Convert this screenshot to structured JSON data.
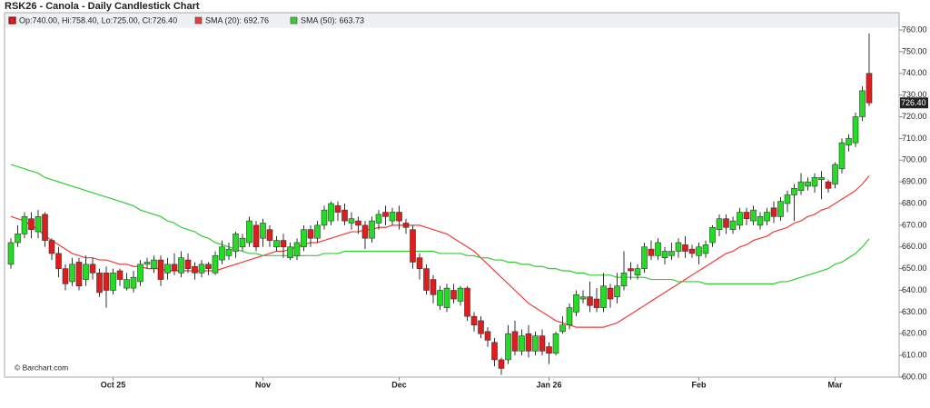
{
  "chart_data": {
    "type": "candlestick",
    "title": "RSK26 - Canola - Daily Candlestick Chart",
    "legend_ohlc": "Op:740.00, Hi:758.40, Lo:725.00, Cl:726.40",
    "credit": "© Barchart.com",
    "up_color": "#22dd22",
    "down_color": "#e01c1c",
    "last_price": {
      "value": 726.4,
      "label": "726.40"
    },
    "ylim": [
      600,
      760
    ],
    "yticks": [
      {
        "value": 600,
        "label": "600.00"
      },
      {
        "value": 610,
        "label": "610.00"
      },
      {
        "value": 620,
        "label": "620.00"
      },
      {
        "value": 630,
        "label": "630.00"
      },
      {
        "value": 640,
        "label": "640.00"
      },
      {
        "value": 650,
        "label": "650.00"
      },
      {
        "value": 660,
        "label": "660.00"
      },
      {
        "value": 670,
        "label": "670.00"
      },
      {
        "value": 680,
        "label": "680.00"
      },
      {
        "value": 690,
        "label": "690.00"
      },
      {
        "value": 700,
        "label": "700.00"
      },
      {
        "value": 710,
        "label": "710.00"
      },
      {
        "value": 720,
        "label": "720.00"
      },
      {
        "value": 730,
        "label": "730.00"
      },
      {
        "value": 740,
        "label": "740.00"
      },
      {
        "value": 750,
        "label": "750.00"
      },
      {
        "value": 760,
        "label": "760.00"
      }
    ],
    "grid": false,
    "categories": [
      null,
      null,
      null,
      null,
      null,
      null,
      null,
      null,
      null,
      null,
      null,
      null,
      null,
      null,
      null,
      "Oct 25",
      null,
      null,
      null,
      null,
      null,
      null,
      null,
      null,
      null,
      null,
      null,
      null,
      null,
      null,
      null,
      null,
      null,
      null,
      null,
      null,
      null,
      "Nov",
      null,
      null,
      null,
      null,
      null,
      null,
      null,
      null,
      null,
      null,
      null,
      null,
      null,
      null,
      null,
      null,
      null,
      null,
      null,
      "Dec",
      null,
      null,
      null,
      null,
      null,
      null,
      null,
      null,
      null,
      null,
      null,
      null,
      null,
      null,
      null,
      null,
      null,
      null,
      null,
      null,
      null,
      "Jan 26",
      null,
      null,
      null,
      null,
      null,
      null,
      null,
      null,
      null,
      null,
      null,
      null,
      null,
      null,
      null,
      null,
      null,
      null,
      null,
      null,
      null,
      "Feb",
      null,
      null,
      null,
      null,
      null,
      null,
      null,
      null,
      null,
      null,
      null,
      null,
      null,
      null,
      null,
      null,
      null,
      null,
      null,
      "Mar",
      null,
      null,
      null,
      null,
      null
    ],
    "open": [
      652,
      662,
      666,
      673,
      667,
      675,
      663,
      657,
      650,
      644,
      653,
      645,
      652,
      648,
      648,
      640,
      649,
      641,
      641,
      644,
      652,
      650,
      654,
      648,
      652,
      648,
      654,
      651,
      648,
      652,
      648,
      654,
      656,
      658,
      660,
      662,
      670,
      664,
      668,
      660,
      663,
      655,
      656,
      660,
      668,
      664,
      670,
      672,
      679,
      677,
      671,
      672,
      670,
      664,
      671,
      676,
      672,
      676,
      671,
      668,
      655,
      650,
      645,
      633,
      632,
      640,
      635,
      641,
      628,
      626,
      621,
      616,
      608,
      608,
      621,
      612,
      620,
      612,
      619,
      614,
      611,
      621,
      624,
      630,
      636,
      637,
      636,
      632,
      641,
      637,
      642,
      650,
      647,
      650,
      659,
      656,
      655,
      656,
      658,
      661,
      659,
      656,
      657,
      662,
      668,
      673,
      668,
      670,
      676,
      672,
      670,
      672,
      678,
      674,
      680,
      684,
      686,
      688,
      688,
      691,
      690,
      689,
      696,
      707,
      708,
      720,
      740
    ],
    "high": [
      664,
      670,
      676,
      676,
      677,
      676,
      664,
      660,
      652,
      655,
      655,
      656,
      655,
      650,
      651,
      650,
      650,
      648,
      649,
      654,
      655,
      656,
      656,
      655,
      657,
      658,
      657,
      653,
      654,
      653,
      658,
      663,
      662,
      667,
      666,
      674,
      672,
      673,
      670,
      665,
      666,
      662,
      664,
      670,
      670,
      672,
      679,
      681,
      681,
      680,
      676,
      674,
      672,
      674,
      677,
      679,
      678,
      679,
      673,
      670,
      657,
      652,
      647,
      642,
      643,
      643,
      642,
      642,
      630,
      628,
      623,
      618,
      609,
      624,
      626,
      622,
      624,
      621,
      622,
      616,
      621,
      628,
      634,
      640,
      640,
      644,
      641,
      648,
      643,
      648,
      658,
      653,
      652,
      662,
      663,
      664,
      660,
      662,
      664,
      665,
      661,
      662,
      663,
      670,
      675,
      675,
      674,
      678,
      678,
      679,
      676,
      678,
      681,
      683,
      686,
      689,
      694,
      692,
      694,
      695,
      691,
      699,
      710,
      712,
      722,
      734,
      758.4
    ],
    "low": [
      650,
      660,
      664,
      664,
      664,
      660,
      654,
      646,
      640,
      642,
      640,
      642,
      645,
      637,
      632,
      638,
      642,
      640,
      639,
      642,
      650,
      648,
      642,
      645,
      647,
      646,
      648,
      645,
      646,
      647,
      647,
      652,
      654,
      655,
      658,
      660,
      658,
      660,
      660,
      658,
      655,
      654,
      654,
      658,
      660,
      662,
      668,
      670,
      672,
      670,
      668,
      666,
      659,
      662,
      668,
      670,
      670,
      668,
      666,
      650,
      645,
      638,
      634,
      631,
      630,
      634,
      633,
      626,
      621,
      618,
      614,
      605,
      601,
      606,
      610,
      610,
      609,
      610,
      610,
      606,
      610,
      620,
      622,
      628,
      634,
      630,
      630,
      630,
      632,
      634,
      640,
      645,
      645,
      648,
      654,
      654,
      652,
      654,
      655,
      655,
      655,
      652,
      655,
      660,
      665,
      666,
      666,
      668,
      670,
      670,
      668,
      670,
      671,
      672,
      676,
      672,
      684,
      686,
      685,
      682,
      685,
      687,
      694,
      704,
      706,
      718,
      725
    ],
    "close": [
      662,
      666,
      674,
      668,
      674,
      663,
      657,
      650,
      643,
      652,
      642,
      652,
      648,
      639,
      640,
      648,
      645,
      645,
      646,
      652,
      653,
      654,
      645,
      652,
      649,
      655,
      650,
      648,
      652,
      650,
      656,
      660,
      659,
      666,
      664,
      672,
      660,
      671,
      663,
      663,
      660,
      660,
      662,
      668,
      664,
      670,
      677,
      680,
      676,
      672,
      673,
      670,
      664,
      672,
      675,
      674,
      676,
      672,
      669,
      653,
      650,
      640,
      638,
      640,
      641,
      636,
      641,
      628,
      624,
      620,
      617,
      608,
      604,
      620,
      612,
      619,
      612,
      619,
      612,
      611,
      620,
      624,
      632,
      638,
      637,
      633,
      632,
      642,
      636,
      642,
      648,
      649,
      650,
      660,
      656,
      662,
      658,
      658,
      662,
      658,
      657,
      660,
      661,
      669,
      673,
      669,
      672,
      676,
      673,
      677,
      674,
      676,
      674,
      681,
      684,
      687,
      690,
      690,
      692,
      692,
      687,
      698,
      708,
      710,
      720,
      732,
      726.4
    ],
    "series": [
      {
        "name": "SMA (20): 692.76",
        "color": "#f03a3a",
        "values": [
          674,
          673,
          672,
          670,
          668,
          665,
          663,
          661,
          659,
          657,
          656,
          655,
          655,
          654,
          654,
          653,
          652,
          652,
          651,
          651,
          650,
          650,
          650,
          649,
          649,
          649,
          649,
          649,
          649,
          649,
          649,
          650,
          651,
          652,
          653,
          654,
          655,
          656,
          657,
          658,
          658,
          659,
          660,
          661,
          662,
          662,
          663,
          664,
          665,
          666,
          667,
          667,
          668,
          668,
          669,
          669,
          670,
          670,
          670,
          670,
          670,
          669,
          668,
          667,
          666,
          664,
          662,
          660,
          658,
          655,
          652,
          649,
          646,
          643,
          640,
          637,
          634,
          632,
          630,
          628,
          626,
          625,
          624,
          623,
          623,
          623,
          623,
          623,
          624,
          625,
          627,
          629,
          631,
          633,
          635,
          637,
          639,
          641,
          643,
          645,
          647,
          649,
          651,
          653,
          655,
          657,
          658,
          660,
          661,
          663,
          664,
          665,
          667,
          668,
          669,
          671,
          672,
          674,
          675,
          677,
          678,
          680,
          682,
          684,
          686,
          689,
          692.76
        ]
      },
      {
        "name": "SMA (50): 663.73",
        "color": "#33cc33",
        "values": [
          698,
          697,
          696,
          695,
          694,
          692,
          691,
          690,
          689,
          688,
          687,
          686,
          685,
          684,
          683,
          682,
          681,
          680,
          679,
          677,
          676,
          675,
          674,
          672,
          671,
          669,
          668,
          667,
          665,
          664,
          662,
          661,
          660,
          659,
          658,
          657,
          657,
          656,
          656,
          656,
          656,
          656,
          656,
          656,
          656,
          656,
          657,
          657,
          657,
          658,
          658,
          658,
          658,
          658,
          658,
          658,
          658,
          658,
          658,
          658,
          658,
          658,
          658,
          657,
          657,
          657,
          657,
          656,
          656,
          655,
          655,
          654,
          654,
          653,
          653,
          652,
          652,
          651,
          651,
          650,
          650,
          649,
          649,
          648,
          648,
          647,
          647,
          647,
          647,
          646,
          646,
          646,
          646,
          646,
          645,
          645,
          645,
          645,
          644,
          644,
          644,
          644,
          643,
          643,
          643,
          643,
          643,
          643,
          643,
          643,
          643,
          643,
          643,
          644,
          644,
          645,
          646,
          647,
          648,
          649,
          650,
          652,
          653,
          655,
          657,
          660,
          663.73
        ]
      }
    ]
  }
}
